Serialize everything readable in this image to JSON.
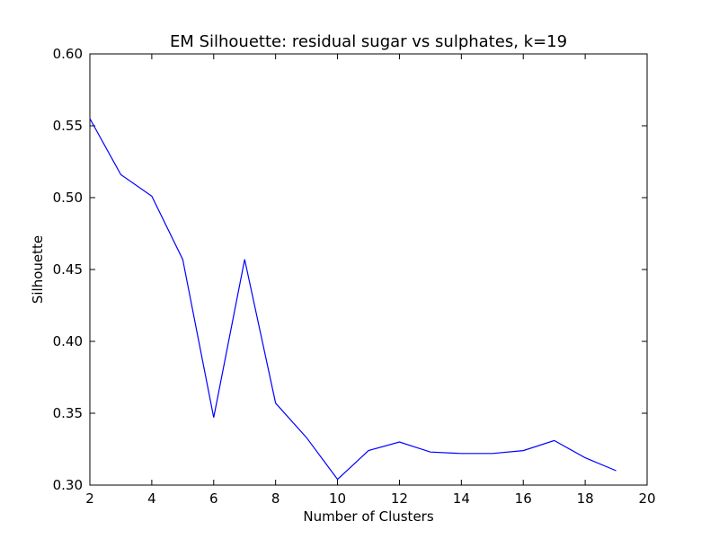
{
  "chart_data": {
    "type": "line",
    "title": "EM Silhouette: residual sugar vs sulphates, k=19",
    "xlabel": "Number of Clusters",
    "ylabel": "Silhouette",
    "xlim": [
      2,
      20
    ],
    "ylim": [
      0.3,
      0.6
    ],
    "xticks": [
      "2",
      "4",
      "6",
      "8",
      "10",
      "12",
      "14",
      "16",
      "18",
      "20"
    ],
    "yticks": [
      "0.30",
      "0.35",
      "0.40",
      "0.45",
      "0.50",
      "0.55",
      "0.60"
    ],
    "grid": false,
    "series": [
      {
        "color": "#0000ff",
        "x": [
          2,
          3,
          4,
          5,
          6,
          7,
          8,
          9,
          10,
          11,
          12,
          13,
          14,
          15,
          16,
          17,
          18,
          19
        ],
        "y": [
          0.555,
          0.516,
          0.501,
          0.457,
          0.347,
          0.457,
          0.357,
          0.333,
          0.304,
          0.324,
          0.33,
          0.323,
          0.322,
          0.322,
          0.324,
          0.331,
          0.319,
          0.31
        ]
      }
    ]
  }
}
